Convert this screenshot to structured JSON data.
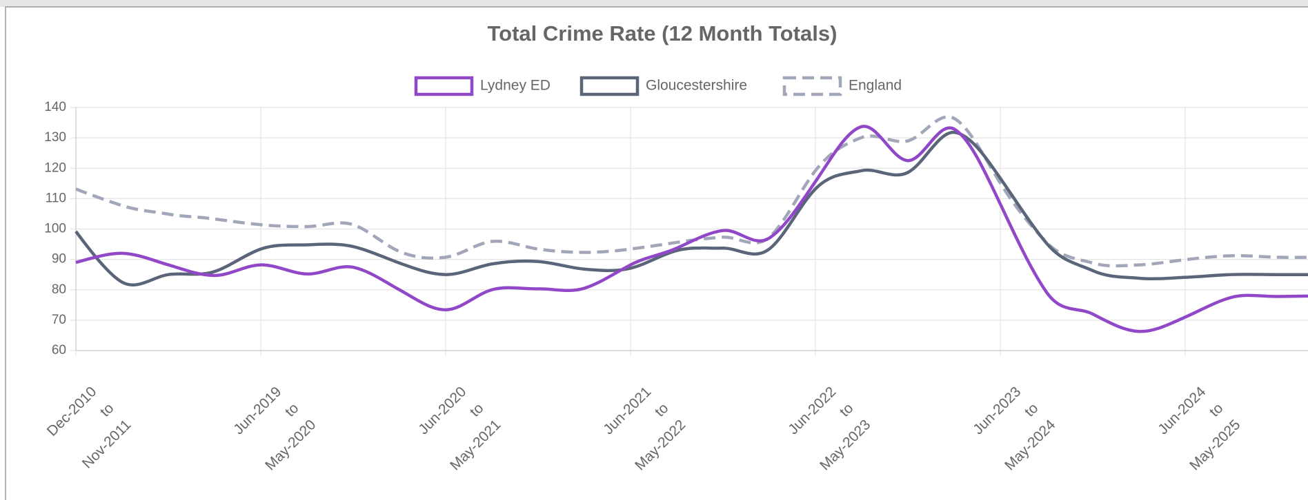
{
  "chart_data": {
    "type": "line",
    "title": "Total Crime Rate (12 Month Totals)",
    "categories": [
      [
        "Dec-2010",
        "to",
        "Nov-2011"
      ],
      null,
      null,
      null,
      [
        "Jun-2019",
        "to",
        "May-2020"
      ],
      null,
      null,
      null,
      [
        "Jun-2020",
        "to",
        "May-2021"
      ],
      null,
      null,
      null,
      [
        "Jun-2021",
        "to",
        "May-2022"
      ],
      null,
      null,
      null,
      [
        "Jun-2022",
        "to",
        "May-2023"
      ],
      null,
      null,
      null,
      [
        "Jun-2023",
        "to",
        "May-2024"
      ],
      null,
      null,
      null,
      [
        "Jun-2024",
        "to",
        "May-2025"
      ],
      null,
      null,
      null
    ],
    "series": [
      {
        "name": "Lydney ED",
        "color": "#9148c8",
        "dashed": false,
        "values": [
          89,
          92,
          88.2,
          84.7,
          88.2,
          85.2,
          87.4,
          80,
          73.4,
          80,
          80.3,
          80.5,
          88.2,
          93.7,
          99.5,
          97,
          115.6,
          133.7,
          122.5,
          132.9,
          108.2,
          79.2,
          72,
          66.3,
          71,
          77.5,
          77.8,
          78
        ]
      },
      {
        "name": "Gloucestershire",
        "color": "#5b6579",
        "dashed": false,
        "values": [
          99.2,
          82.5,
          85,
          86,
          93.4,
          94.8,
          94.2,
          88.8,
          85,
          88.5,
          89.3,
          86.8,
          87.1,
          92.9,
          93.7,
          93.4,
          113.2,
          119.2,
          118.6,
          131.8,
          116.7,
          95.3,
          86.3,
          83.8,
          84.1,
          85,
          85,
          85
        ]
      },
      {
        "name": "England",
        "color": "#a1a7b8",
        "dashed": true,
        "values": [
          113.2,
          107.7,
          104.9,
          103.3,
          101.4,
          100.8,
          101.4,
          92.6,
          90.7,
          95.9,
          93.4,
          92.3,
          93.4,
          95.6,
          97.3,
          97.3,
          119.2,
          130.1,
          129,
          136.4,
          115.1,
          95.6,
          88.8,
          88.2,
          89.9,
          91.2,
          90.7,
          90.7
        ]
      }
    ],
    "ylim": [
      60,
      140
    ],
    "yticks": [
      60,
      70,
      80,
      90,
      100,
      110,
      120,
      130,
      140
    ],
    "grid": true
  }
}
